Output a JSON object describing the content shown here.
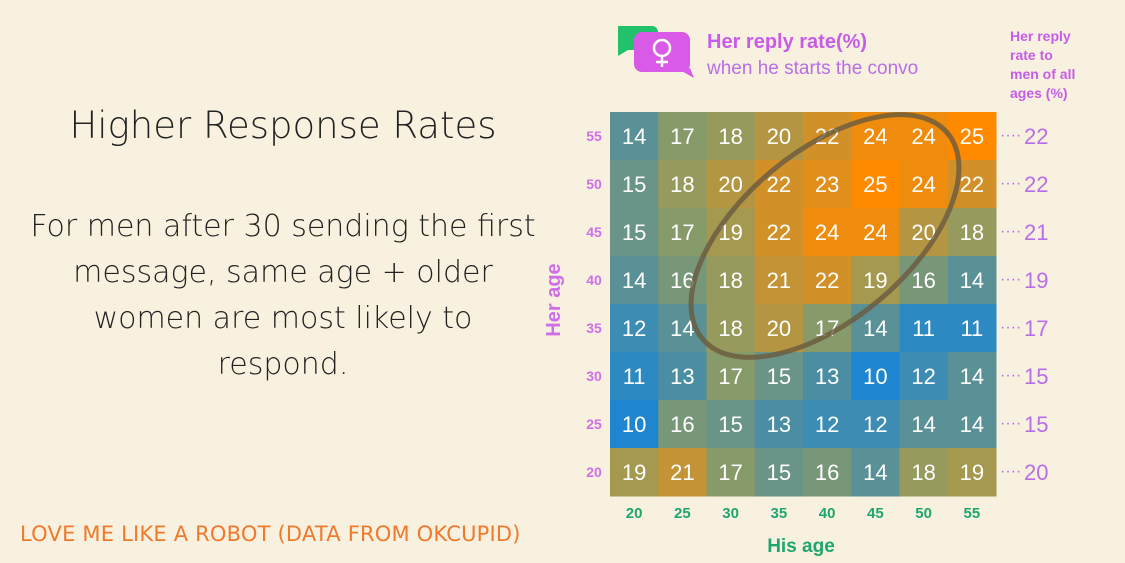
{
  "left_panel": {
    "title": "Higher Response Rates",
    "body": "For men after 30 sending the first message, same age + older women are most likely to respond.",
    "credit": "LOVE ME LIKE A ROBOT (DATA FROM OKCUPID)"
  },
  "legend": {
    "icon": "female-symbol-chat-icon",
    "title": "Her reply rate(%)",
    "subtitle": "when he starts the convo",
    "side_note": [
      "Her reply",
      "rate to",
      "men of all",
      "ages (%)"
    ]
  },
  "chart_data": {
    "type": "heatmap",
    "title": "Her reply rate(%)",
    "subtitle": "when he starts the convo",
    "xlabel": "His age",
    "ylabel": "Her age",
    "x": [
      "20",
      "25",
      "30",
      "35",
      "40",
      "45",
      "50",
      "55"
    ],
    "y": [
      "55",
      "50",
      "45",
      "40",
      "35",
      "30",
      "25",
      "20"
    ],
    "values": [
      [
        14,
        17,
        18,
        20,
        22,
        24,
        24,
        25
      ],
      [
        15,
        18,
        20,
        22,
        23,
        25,
        24,
        22
      ],
      [
        15,
        17,
        19,
        22,
        24,
        24,
        20,
        18
      ],
      [
        14,
        16,
        18,
        21,
        22,
        19,
        16,
        14
      ],
      [
        12,
        14,
        18,
        20,
        17,
        14,
        11,
        11
      ],
      [
        11,
        13,
        17,
        15,
        13,
        10,
        12,
        14
      ],
      [
        10,
        16,
        15,
        13,
        12,
        12,
        14,
        14
      ],
      [
        19,
        21,
        17,
        15,
        16,
        14,
        18,
        19
      ]
    ],
    "row_totals_label": "Her reply rate to men of all ages (%)",
    "row_totals": [
      22,
      22,
      21,
      19,
      17,
      15,
      15,
      20
    ],
    "annotation": "ellipse highlighting men 30-55 with same age or older women",
    "colors": {
      "low": "#1e86d0",
      "mid": "#8f9b63",
      "high": "#ff8a00",
      "axis_labels": "#d06ee8",
      "x_labels": "#1fa66f",
      "legend_title": "#c85ce8",
      "legend_subtitle": "#b86fe6",
      "row_total": "#b86fe6",
      "chat_green": "#22c16b",
      "chat_pink": "#d95ae6",
      "circle": "#6a5a3e"
    },
    "grid": false
  }
}
